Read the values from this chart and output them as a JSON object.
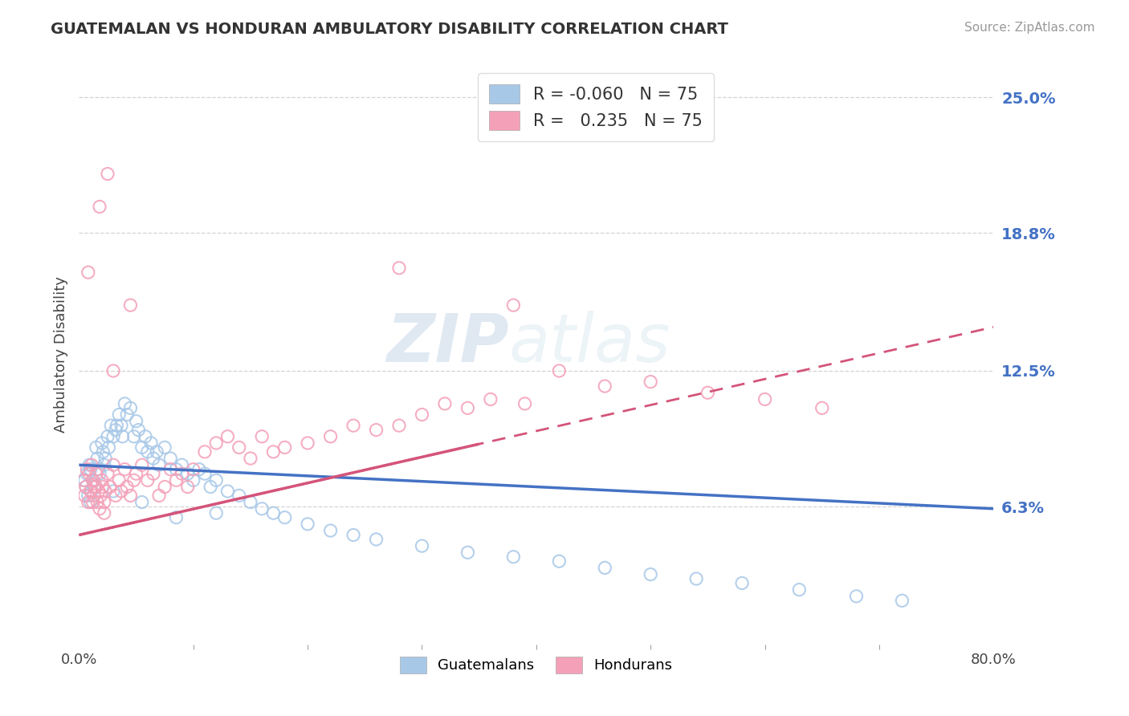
{
  "title": "GUATEMALAN VS HONDURAN AMBULATORY DISABILITY CORRELATION CHART",
  "source": "Source: ZipAtlas.com",
  "ylabel": "Ambulatory Disability",
  "xlim": [
    0.0,
    0.8
  ],
  "ylim": [
    0.0,
    0.265
  ],
  "r_guatemalan": -0.06,
  "r_honduran": 0.235,
  "n_guatemalan": 75,
  "n_honduran": 75,
  "color_guatemalan": "#a8c8e8",
  "color_honduran": "#f4a0b8",
  "color_blue": "#4472C4",
  "color_pink": "#d4547a",
  "legend_label_guatemalan": "Guatemalans",
  "legend_label_honduran": "Hondurans",
  "background_color": "#ffffff",
  "grid_color": "#c8c8c8",
  "ytick_vals": [
    0.063,
    0.125,
    0.188,
    0.25
  ],
  "ytick_labels": [
    "6.3%",
    "12.5%",
    "18.8%",
    "25.0%"
  ],
  "xtick_vals": [
    0.0,
    0.8
  ],
  "xtick_labels": [
    "0.0%",
    "80.0%"
  ],
  "trend_g_x0": 0.0,
  "trend_g_x1": 0.8,
  "trend_g_y0": 0.082,
  "trend_g_y1": 0.062,
  "trend_h_x0": 0.0,
  "trend_h_x1": 0.8,
  "trend_h_y0": 0.05,
  "trend_h_y1": 0.145,
  "guatemalan_x": [
    0.005,
    0.006,
    0.007,
    0.008,
    0.009,
    0.01,
    0.01,
    0.011,
    0.012,
    0.013,
    0.015,
    0.016,
    0.017,
    0.018,
    0.02,
    0.021,
    0.022,
    0.023,
    0.025,
    0.026,
    0.028,
    0.03,
    0.032,
    0.033,
    0.035,
    0.037,
    0.038,
    0.04,
    0.042,
    0.045,
    0.048,
    0.05,
    0.052,
    0.055,
    0.058,
    0.06,
    0.063,
    0.065,
    0.068,
    0.07,
    0.075,
    0.08,
    0.085,
    0.09,
    0.095,
    0.1,
    0.105,
    0.11,
    0.115,
    0.12,
    0.13,
    0.14,
    0.15,
    0.16,
    0.17,
    0.18,
    0.2,
    0.22,
    0.24,
    0.26,
    0.3,
    0.34,
    0.38,
    0.42,
    0.46,
    0.5,
    0.54,
    0.58,
    0.63,
    0.68,
    0.72,
    0.12,
    0.085,
    0.055,
    0.03
  ],
  "guatemalan_y": [
    0.075,
    0.072,
    0.078,
    0.068,
    0.082,
    0.08,
    0.065,
    0.07,
    0.075,
    0.072,
    0.09,
    0.085,
    0.08,
    0.078,
    0.092,
    0.088,
    0.082,
    0.085,
    0.095,
    0.09,
    0.1,
    0.095,
    0.098,
    0.1,
    0.105,
    0.1,
    0.095,
    0.11,
    0.105,
    0.108,
    0.095,
    0.102,
    0.098,
    0.09,
    0.095,
    0.088,
    0.092,
    0.085,
    0.088,
    0.082,
    0.09,
    0.085,
    0.08,
    0.082,
    0.078,
    0.075,
    0.08,
    0.078,
    0.072,
    0.075,
    0.07,
    0.068,
    0.065,
    0.062,
    0.06,
    0.058,
    0.055,
    0.052,
    0.05,
    0.048,
    0.045,
    0.042,
    0.04,
    0.038,
    0.035,
    0.032,
    0.03,
    0.028,
    0.025,
    0.022,
    0.02,
    0.06,
    0.058,
    0.065,
    0.07
  ],
  "honduran_x": [
    0.004,
    0.005,
    0.006,
    0.007,
    0.008,
    0.009,
    0.01,
    0.011,
    0.012,
    0.013,
    0.014,
    0.015,
    0.016,
    0.017,
    0.018,
    0.019,
    0.02,
    0.021,
    0.022,
    0.023,
    0.025,
    0.027,
    0.03,
    0.032,
    0.035,
    0.037,
    0.04,
    0.042,
    0.045,
    0.048,
    0.05,
    0.055,
    0.06,
    0.065,
    0.07,
    0.075,
    0.08,
    0.085,
    0.09,
    0.095,
    0.1,
    0.11,
    0.12,
    0.13,
    0.14,
    0.15,
    0.16,
    0.17,
    0.18,
    0.2,
    0.22,
    0.24,
    0.26,
    0.28,
    0.3,
    0.32,
    0.34,
    0.36,
    0.39,
    0.42,
    0.46,
    0.5,
    0.55,
    0.6,
    0.65,
    0.28,
    0.38,
    0.045,
    0.025,
    0.018,
    0.015,
    0.012,
    0.022,
    0.03,
    0.008
  ],
  "honduran_y": [
    0.075,
    0.068,
    0.072,
    0.08,
    0.065,
    0.078,
    0.07,
    0.082,
    0.075,
    0.068,
    0.072,
    0.078,
    0.065,
    0.07,
    0.062,
    0.068,
    0.075,
    0.072,
    0.065,
    0.07,
    0.078,
    0.072,
    0.082,
    0.068,
    0.075,
    0.07,
    0.08,
    0.072,
    0.068,
    0.075,
    0.078,
    0.082,
    0.075,
    0.078,
    0.068,
    0.072,
    0.08,
    0.075,
    0.078,
    0.072,
    0.08,
    0.088,
    0.092,
    0.095,
    0.09,
    0.085,
    0.095,
    0.088,
    0.09,
    0.092,
    0.095,
    0.1,
    0.098,
    0.1,
    0.105,
    0.11,
    0.108,
    0.112,
    0.11,
    0.125,
    0.118,
    0.12,
    0.115,
    0.112,
    0.108,
    0.172,
    0.155,
    0.155,
    0.215,
    0.2,
    0.072,
    0.065,
    0.06,
    0.125,
    0.17
  ]
}
